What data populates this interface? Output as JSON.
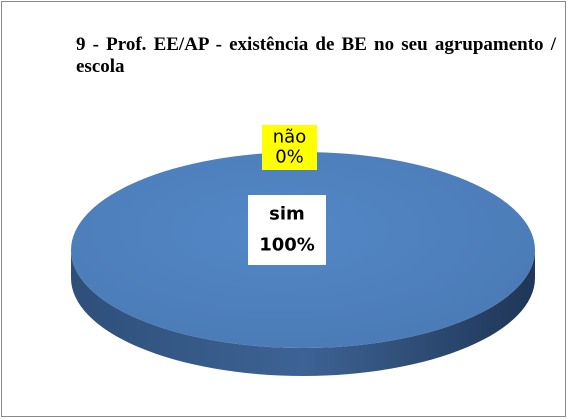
{
  "chart_data": {
    "type": "pie",
    "title": "9 - Prof. EE/AP - existência de BE no seu agrupamento / escola",
    "categories": [
      "sim",
      "não"
    ],
    "values": [
      100,
      0
    ],
    "value_labels": [
      "100%",
      "0%"
    ],
    "colors": [
      "#4f81bd",
      "#c0504d"
    ]
  }
}
